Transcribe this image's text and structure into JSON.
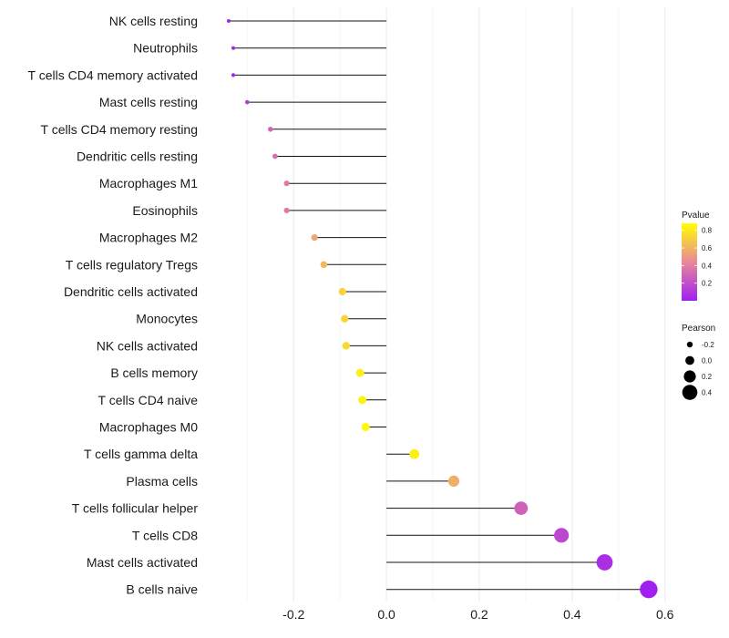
{
  "chart_data": {
    "type": "lollipop",
    "categories": [
      "NK cells resting",
      "Neutrophils",
      "T cells CD4 memory activated",
      "Mast cells resting",
      "T cells CD4 memory resting",
      "Dendritic cells resting",
      "Macrophages M1",
      "Eosinophils",
      "Macrophages M2",
      "T cells regulatory  Tregs ",
      "Dendritic cells activated",
      "Monocytes",
      "NK cells activated",
      "B cells memory",
      "T cells CD4 naive",
      "Macrophages M0",
      "T cells gamma delta",
      "Plasma cells",
      "T cells follicular helper",
      "T cells CD8",
      "Mast cells activated",
      "B cells naive"
    ],
    "pearson": [
      -0.34,
      -0.33,
      -0.33,
      -0.3,
      -0.25,
      -0.24,
      -0.215,
      -0.215,
      -0.155,
      -0.135,
      -0.095,
      -0.09,
      -0.087,
      -0.057,
      -0.052,
      -0.045,
      0.06,
      0.145,
      0.29,
      0.377,
      0.47,
      0.565
    ],
    "pvalue": [
      0.02,
      0.03,
      0.03,
      0.12,
      0.3,
      0.33,
      0.38,
      0.38,
      0.55,
      0.62,
      0.72,
      0.72,
      0.74,
      0.83,
      0.84,
      0.86,
      0.82,
      0.58,
      0.28,
      0.17,
      0.06,
      0.0
    ],
    "xlim": [
      -0.385,
      0.63
    ],
    "xticks": [
      -0.2,
      0.0,
      0.2,
      0.4,
      0.6
    ],
    "xtick_labels": [
      "-0.2",
      "0.0",
      "0.2",
      "0.4",
      "0.6"
    ],
    "title": "",
    "xlabel": "",
    "ylabel": "",
    "grid": "vertical",
    "legend_position": "right",
    "legend": {
      "pvalue_title": "Pvalue",
      "pvalue_ticks": [
        "0.8",
        "0.6",
        "0.4",
        "0.2"
      ],
      "pvalue_tick_values": [
        0.8,
        0.6,
        0.4,
        0.2
      ],
      "pvalue_range": [
        0.0,
        0.88
      ],
      "pearson_title": "Pearson",
      "pearson_items": [
        "-0.2",
        "0.0",
        "0.2",
        "0.4"
      ],
      "pearson_item_values": [
        -0.2,
        0.0,
        0.2,
        0.4
      ]
    },
    "colors": {
      "low": "#a020f0",
      "mid": "#e8889a",
      "high": "#ffff00"
    }
  }
}
